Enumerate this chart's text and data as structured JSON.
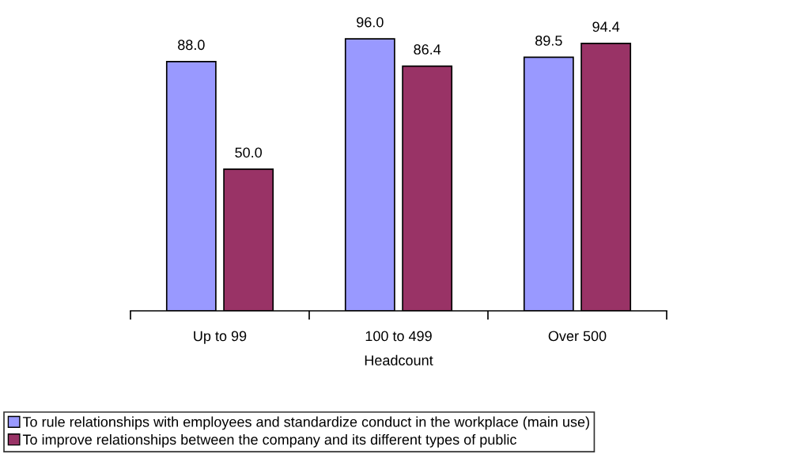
{
  "chart_data": {
    "type": "bar",
    "xlabel": "Headcount",
    "categories": [
      "Up to 99",
      "100 to 499",
      "Over 500"
    ],
    "series": [
      {
        "name": "To rule relationships with employees and standardize conduct in the workplace (main use)",
        "color": "#9999ff",
        "values": [
          88.0,
          96.0,
          89.5
        ],
        "value_labels": [
          "88.0",
          "96.0",
          "89.5"
        ]
      },
      {
        "name": "To improve relationships between the company and its different types of public",
        "color": "#993366",
        "values": [
          50.0,
          86.4,
          94.4
        ],
        "value_labels": [
          "50.0",
          "86.4",
          "94.4"
        ]
      }
    ],
    "grid": false,
    "legend": "bottom",
    "tick_labels": "x"
  }
}
